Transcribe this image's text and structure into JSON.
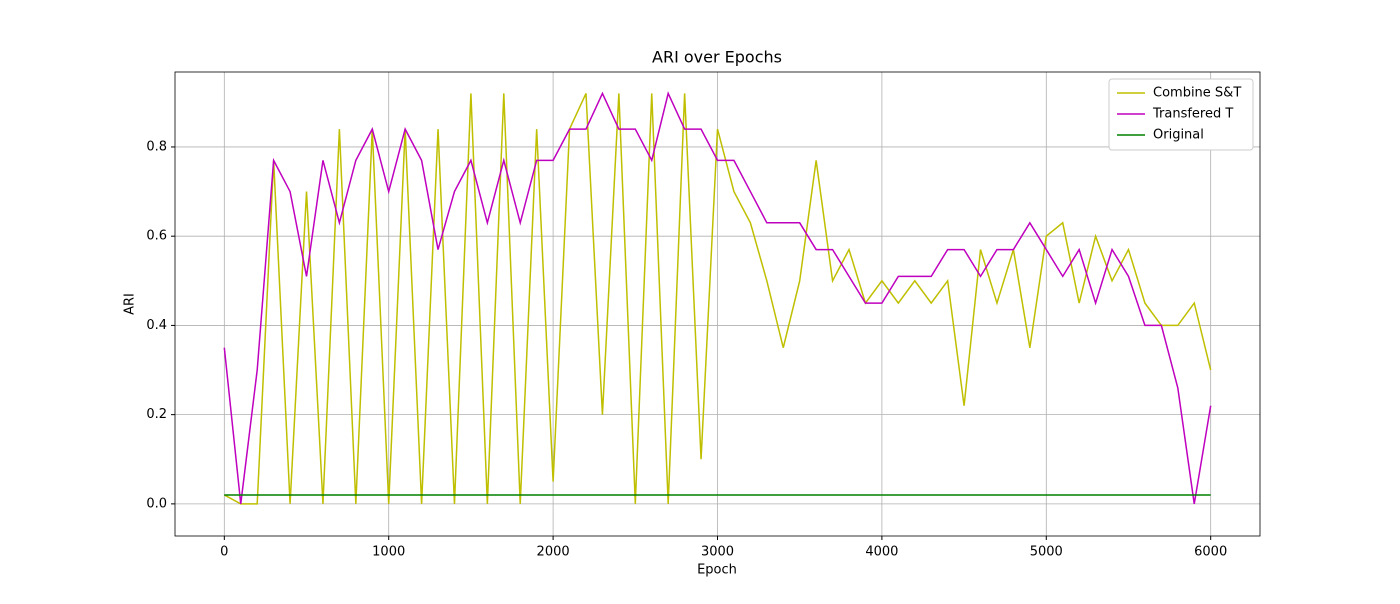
{
  "chart_data": {
    "type": "line",
    "title": "ARI over Epochs",
    "xlabel": "Epoch",
    "ylabel": "ARI",
    "x": [
      0,
      100,
      200,
      300,
      400,
      500,
      600,
      700,
      800,
      900,
      1000,
      1100,
      1200,
      1300,
      1400,
      1500,
      1600,
      1700,
      1800,
      1900,
      2000,
      2100,
      2200,
      2300,
      2400,
      2500,
      2600,
      2700,
      2800,
      2900,
      3000,
      3100,
      3200,
      3300,
      3400,
      3500,
      3600,
      3700,
      3800,
      3900,
      4000,
      4100,
      4200,
      4300,
      4400,
      4500,
      4600,
      4700,
      4800,
      4900,
      5000,
      5100,
      5200,
      5300,
      5400,
      5500,
      5600,
      5700,
      5800,
      5900,
      6000
    ],
    "series": [
      {
        "name": "Combine S&T",
        "color": "#bfbf00",
        "values": [
          0.02,
          0,
          0,
          0.77,
          0,
          0.7,
          0,
          0.84,
          0,
          0.84,
          0,
          0.84,
          0,
          0.84,
          0,
          0.92,
          0,
          0.92,
          0,
          0.84,
          0.05,
          0.84,
          0.92,
          0.2,
          0.92,
          0,
          0.92,
          0,
          0.92,
          0.1,
          0.84,
          0.7,
          0.63,
          0.5,
          0.35,
          0.5,
          0.77,
          0.5,
          0.57,
          0.45,
          0.5,
          0.45,
          0.5,
          0.45,
          0.5,
          0.22,
          0.57,
          0.45,
          0.57,
          0.35,
          0.6,
          0.63,
          0.45,
          0.6,
          0.5,
          0.57,
          0.45,
          0.4,
          0.4,
          0.45,
          0.3
        ]
      },
      {
        "name": "Transfered T",
        "color": "#bf00bf",
        "values": [
          0.35,
          0,
          0.3,
          0.77,
          0.7,
          0.51,
          0.77,
          0.63,
          0.77,
          0.84,
          0.7,
          0.84,
          0.77,
          0.57,
          0.7,
          0.77,
          0.63,
          0.77,
          0.63,
          0.77,
          0.77,
          0.84,
          0.84,
          0.92,
          0.84,
          0.84,
          0.77,
          0.92,
          0.84,
          0.84,
          0.77,
          0.77,
          0.7,
          0.63,
          0.63,
          0.63,
          0.57,
          0.57,
          0.51,
          0.45,
          0.45,
          0.51,
          0.51,
          0.51,
          0.57,
          0.57,
          0.51,
          0.57,
          0.57,
          0.63,
          0.57,
          0.51,
          0.57,
          0.45,
          0.57,
          0.51,
          0.4,
          0.4,
          0.26,
          0,
          0.22
        ]
      },
      {
        "name": "Original",
        "color": "#008000",
        "values": [
          0.02,
          0.02,
          0.02,
          0.02,
          0.02,
          0.02,
          0.02,
          0.02,
          0.02,
          0.02,
          0.02,
          0.02,
          0.02,
          0.02,
          0.02,
          0.02,
          0.02,
          0.02,
          0.02,
          0.02,
          0.02,
          0.02,
          0.02,
          0.02,
          0.02,
          0.02,
          0.02,
          0.02,
          0.02,
          0.02,
          0.02,
          0.02,
          0.02,
          0.02,
          0.02,
          0.02,
          0.02,
          0.02,
          0.02,
          0.02,
          0.02,
          0.02,
          0.02,
          0.02,
          0.02,
          0.02,
          0.02,
          0.02,
          0.02,
          0.02,
          0.02,
          0.02,
          0.02,
          0.02,
          0.02,
          0.02,
          0.02,
          0.02,
          0.02,
          0.02,
          0.02
        ]
      }
    ],
    "xlim": [
      -300,
      6300
    ],
    "ylim": [
      -0.072,
      0.968
    ],
    "xticks": [
      0,
      1000,
      2000,
      3000,
      4000,
      5000,
      6000
    ],
    "yticks": [
      {
        "value": 0,
        "label": "0.0"
      },
      0.2,
      0.4,
      0.6,
      0.8
    ],
    "grid": true,
    "legend": "upper right"
  }
}
